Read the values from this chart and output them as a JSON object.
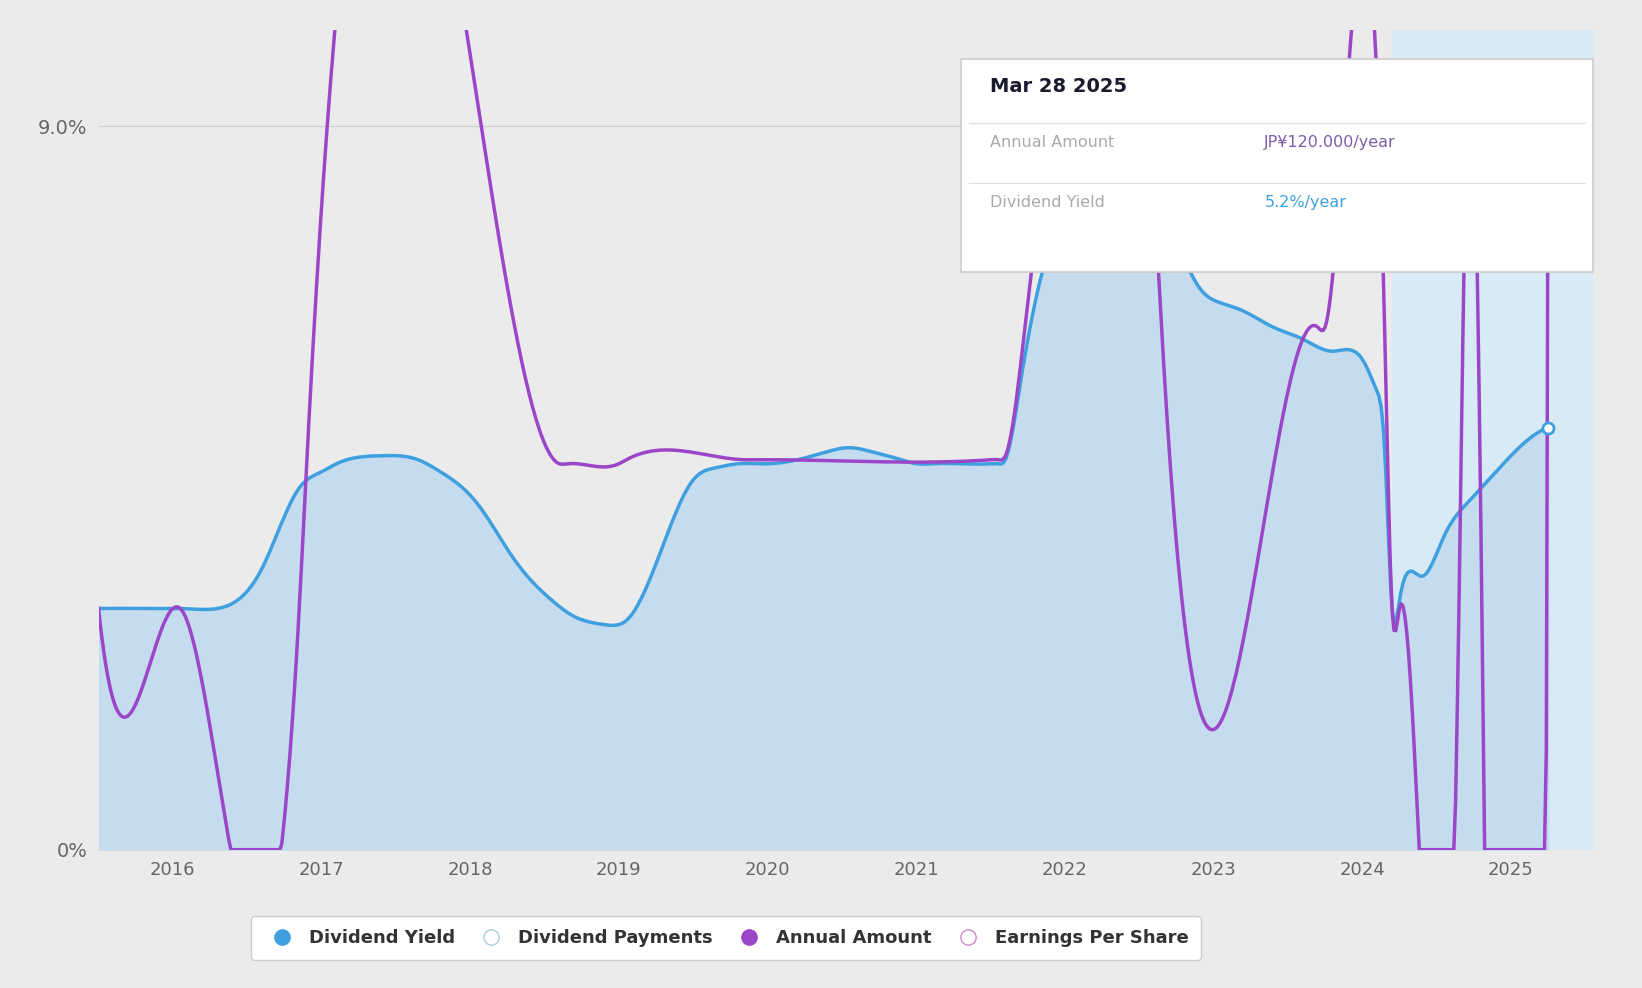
{
  "bg_color": "#ebebeb",
  "plot_bg_color": "#ebebeb",
  "fill_color": "#c5dcef",
  "past_fill_color": "#d8eaf5",
  "line_blue_color": "#3fa0e0",
  "line_purple_color": "#9b45c8",
  "grid_color": "#d0d0d0",
  "past_start_x": 2024.2,
  "tooltip_date": "Mar 28 2025",
  "tooltip_annual": "JP¥120.000/year",
  "tooltip_yield": "5.2%/year",
  "xmin": 2015.5,
  "xmax": 2025.55,
  "ymin": 0.0,
  "ymax": 10.2,
  "blue_x": [
    2015.5,
    2015.8,
    2016.0,
    2016.05,
    2016.3,
    2016.6,
    2016.85,
    2017.0,
    2017.1,
    2017.4,
    2017.65,
    2017.8,
    2017.95,
    2018.05,
    2018.3,
    2018.55,
    2018.7,
    2018.9,
    2019.0,
    2019.05,
    2019.3,
    2019.5,
    2019.65,
    2019.8,
    2019.95,
    2020.0,
    2020.2,
    2020.4,
    2020.55,
    2020.7,
    2020.9,
    2021.0,
    2021.1,
    2021.3,
    2021.5,
    2021.55,
    2021.6,
    2021.7,
    2021.85,
    2022.0,
    2022.1,
    2022.2,
    2022.35,
    2022.45,
    2022.55,
    2022.6,
    2022.75,
    2022.9,
    2023.05,
    2023.2,
    2023.4,
    2023.6,
    2023.8,
    2024.0,
    2024.1,
    2024.15,
    2024.2,
    2024.25,
    2024.4,
    2024.55,
    2024.7,
    2024.85,
    2025.0,
    2025.15,
    2025.25
  ],
  "blue_y": [
    3.0,
    3.0,
    3.0,
    3.0,
    3.0,
    3.5,
    4.5,
    4.7,
    4.8,
    4.9,
    4.85,
    4.7,
    4.5,
    4.3,
    3.6,
    3.1,
    2.9,
    2.8,
    2.8,
    2.85,
    3.8,
    4.6,
    4.75,
    4.8,
    4.8,
    4.8,
    4.85,
    4.95,
    5.0,
    4.95,
    4.85,
    4.8,
    4.8,
    4.8,
    4.8,
    4.8,
    4.85,
    5.8,
    7.2,
    8.0,
    8.4,
    8.6,
    8.7,
    8.65,
    8.5,
    8.3,
    7.6,
    7.0,
    6.8,
    6.7,
    6.5,
    6.35,
    6.2,
    6.1,
    5.7,
    5.0,
    3.0,
    3.1,
    3.4,
    3.9,
    4.3,
    4.6,
    4.9,
    5.15,
    5.25
  ],
  "purple_x": [
    2015.5,
    2016.0,
    2016.05,
    2016.85,
    2016.9,
    2018.6,
    2018.65,
    2019.0,
    2019.05,
    2019.85,
    2019.9,
    2021.5,
    2021.55,
    2021.6,
    2021.7,
    2021.8,
    2022.0,
    2022.15,
    2022.4,
    2022.55,
    2022.6,
    2022.65,
    2023.7,
    2023.75,
    2024.15,
    2024.2,
    2024.25,
    2024.65,
    2024.7,
    2024.75,
    2025.25
  ],
  "purple_y": [
    3.0,
    3.0,
    3.0,
    3.0,
    4.8,
    4.8,
    4.8,
    4.8,
    4.85,
    4.85,
    4.85,
    4.85,
    4.85,
    4.9,
    6.0,
    7.5,
    8.0,
    8.45,
    8.7,
    8.5,
    8.0,
    6.5,
    6.5,
    6.5,
    6.5,
    3.0,
    3.0,
    3.0,
    8.8,
    9.1,
    9.25
  ]
}
